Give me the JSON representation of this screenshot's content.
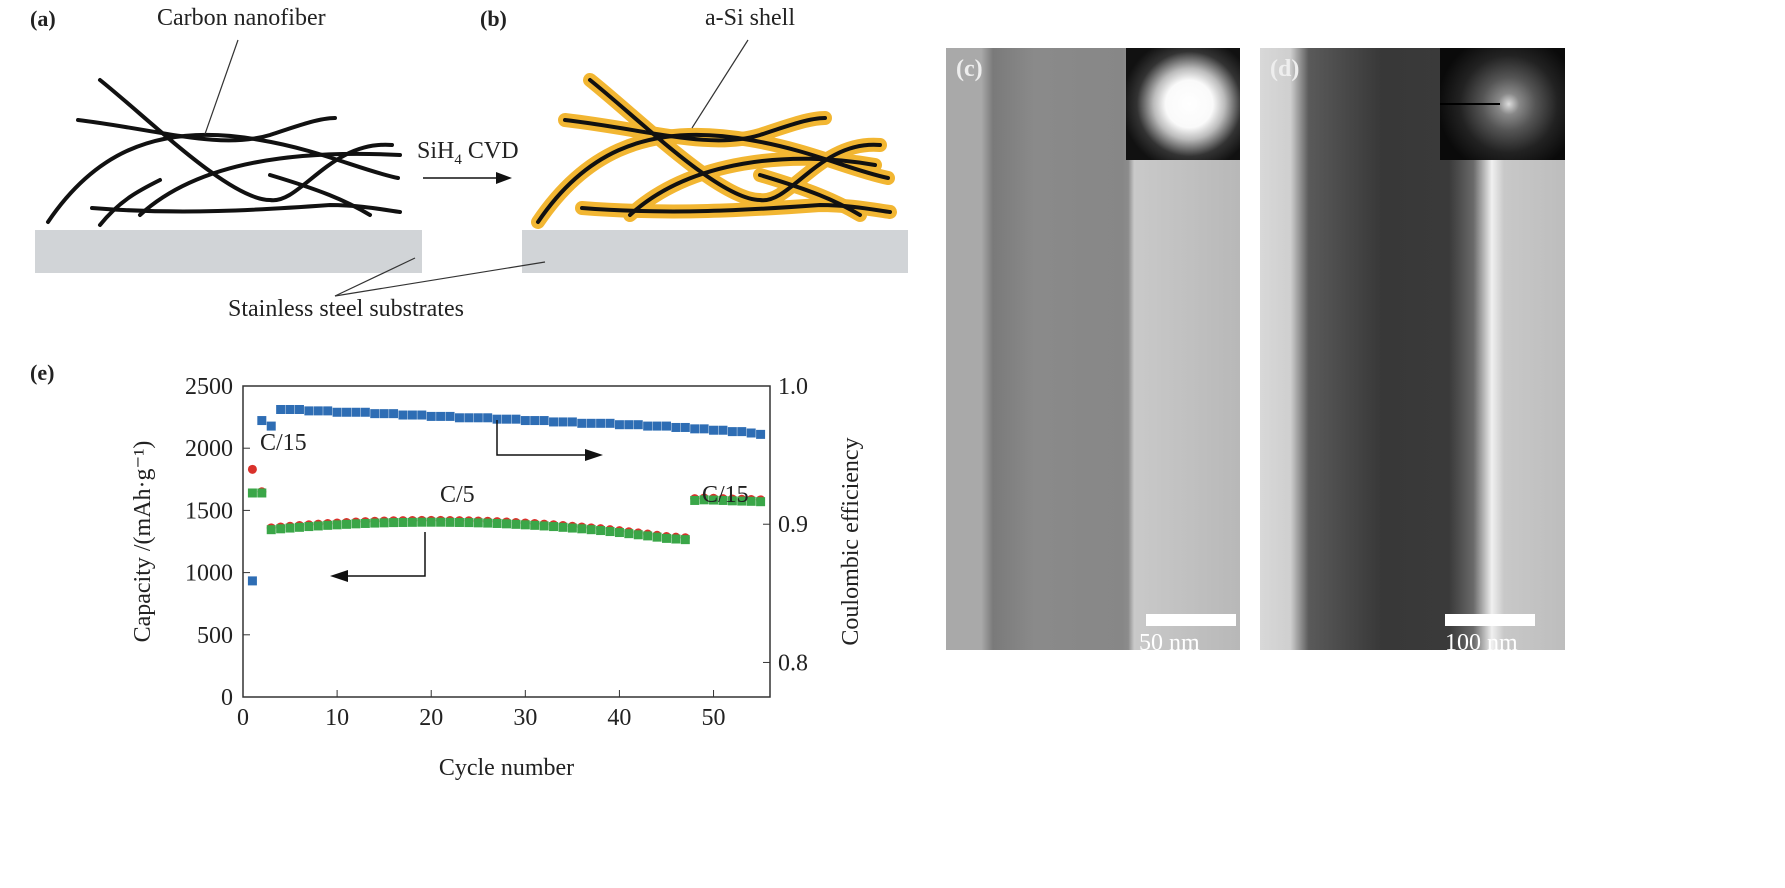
{
  "panels": {
    "a": "(a)",
    "b": "(b)",
    "c": "(c)",
    "d": "(d)",
    "e": "(e)"
  },
  "schematic": {
    "fiber_label": "Carbon nanofiber",
    "process_label": "SiH",
    "process_sub": "4",
    "process_suffix": " CVD",
    "shell_label": "a-Si shell",
    "substrate_label": "Stainless steel substrates",
    "substrate_color": "#d1d4d7",
    "shell_color": "#f2b632"
  },
  "tem": {
    "c_scale": "50 nm",
    "d_scale": "100 nm"
  },
  "chart_data": {
    "type": "scatter",
    "xlabel": "Cycle number",
    "ylabel": "Capacity /(mAh·g⁻¹)",
    "ylabel_right": "Coulombic efficiency",
    "xlim": [
      0,
      56
    ],
    "ylim": [
      0,
      2500
    ],
    "ylim_right": [
      0.775,
      1.0
    ],
    "xticks": [
      0,
      10,
      20,
      30,
      40,
      50
    ],
    "yticks": [
      0,
      500,
      1000,
      1500,
      2000,
      2500
    ],
    "yticks_right": [
      0.8,
      0.9,
      1.0
    ],
    "annotations": [
      "C/15",
      "C/5",
      "C/15"
    ],
    "grid": false,
    "cycles": [
      1,
      2,
      3,
      4,
      5,
      6,
      7,
      8,
      9,
      10,
      11,
      12,
      13,
      14,
      15,
      16,
      17,
      18,
      19,
      20,
      21,
      22,
      23,
      24,
      25,
      26,
      27,
      28,
      29,
      30,
      31,
      32,
      33,
      34,
      35,
      36,
      37,
      38,
      39,
      40,
      41,
      42,
      43,
      44,
      45,
      46,
      47,
      48,
      49,
      50,
      51,
      52,
      53,
      54,
      55
    ],
    "series": [
      {
        "color": "#d9312b",
        "marker": "circle",
        "axis": "left",
        "values": [
          1830,
          1650,
          1360,
          1367,
          1373,
          1379,
          1385,
          1390,
          1395,
          1399,
          1403,
          1407,
          1410,
          1413,
          1415,
          1417,
          1418,
          1419,
          1420,
          1420,
          1420,
          1419,
          1418,
          1417,
          1415,
          1413,
          1410,
          1407,
          1403,
          1399,
          1395,
          1390,
          1385,
          1379,
          1373,
          1367,
          1360,
          1353,
          1345,
          1337,
          1328,
          1319,
          1310,
          1300,
          1290,
          1285,
          1280,
          1595,
          1600,
          1598,
          1595,
          1592,
          1590,
          1588,
          1585
        ]
      },
      {
        "color": "#3aa648",
        "marker": "square",
        "axis": "left",
        "values": [
          1640,
          1640,
          1345,
          1352,
          1358,
          1364,
          1370,
          1375,
          1380,
          1384,
          1388,
          1392,
          1395,
          1398,
          1400,
          1402,
          1403,
          1404,
          1405,
          1405,
          1405,
          1404,
          1403,
          1402,
          1400,
          1398,
          1395,
          1392,
          1388,
          1384,
          1380,
          1375,
          1370,
          1364,
          1358,
          1352,
          1345,
          1338,
          1330,
          1322,
          1313,
          1304,
          1295,
          1285,
          1275,
          1270,
          1265,
          1580,
          1585,
          1583,
          1580,
          1577,
          1575,
          1573,
          1570
        ]
      },
      {
        "color": "#2e6db4",
        "marker": "square",
        "axis": "right",
        "values": [
          0.859,
          0.975,
          0.971,
          0.983,
          0.983,
          0.983,
          0.982,
          0.982,
          0.982,
          0.981,
          0.981,
          0.981,
          0.981,
          0.98,
          0.98,
          0.98,
          0.979,
          0.979,
          0.979,
          0.978,
          0.978,
          0.978,
          0.977,
          0.977,
          0.977,
          0.977,
          0.976,
          0.976,
          0.976,
          0.975,
          0.975,
          0.975,
          0.974,
          0.974,
          0.974,
          0.973,
          0.973,
          0.973,
          0.973,
          0.972,
          0.972,
          0.972,
          0.971,
          0.971,
          0.971,
          0.97,
          0.97,
          0.969,
          0.969,
          0.968,
          0.968,
          0.967,
          0.967,
          0.966,
          0.965
        ]
      }
    ]
  }
}
